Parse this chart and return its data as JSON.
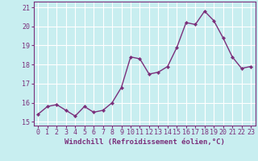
{
  "x": [
    0,
    1,
    2,
    3,
    4,
    5,
    6,
    7,
    8,
    9,
    10,
    11,
    12,
    13,
    14,
    15,
    16,
    17,
    18,
    19,
    20,
    21,
    22,
    23
  ],
  "y": [
    15.4,
    15.8,
    15.9,
    15.6,
    15.3,
    15.8,
    15.5,
    15.6,
    16.0,
    16.8,
    18.4,
    18.3,
    17.5,
    17.6,
    17.9,
    18.9,
    20.2,
    20.1,
    20.8,
    20.3,
    19.4,
    18.4,
    17.8,
    17.9
  ],
  "line_color": "#7b2f7b",
  "marker": "D",
  "markersize": 2.2,
  "linewidth": 1.0,
  "bg_color": "#c8eef0",
  "grid_color": "#ffffff",
  "xlabel": "Windchill (Refroidissement éolien,°C)",
  "xlabel_fontsize": 6.5,
  "ylabel_ticks": [
    15,
    16,
    17,
    18,
    19,
    20,
    21
  ],
  "xtick_labels": [
    "0",
    "1",
    "2",
    "3",
    "4",
    "5",
    "6",
    "7",
    "8",
    "9",
    "10",
    "11",
    "12",
    "13",
    "14",
    "15",
    "16",
    "17",
    "18",
    "19",
    "20",
    "21",
    "22",
    "23"
  ],
  "ylim": [
    14.8,
    21.3
  ],
  "xlim": [
    -0.5,
    23.5
  ],
  "tick_fontsize": 6.0,
  "xlabel_bold": true
}
